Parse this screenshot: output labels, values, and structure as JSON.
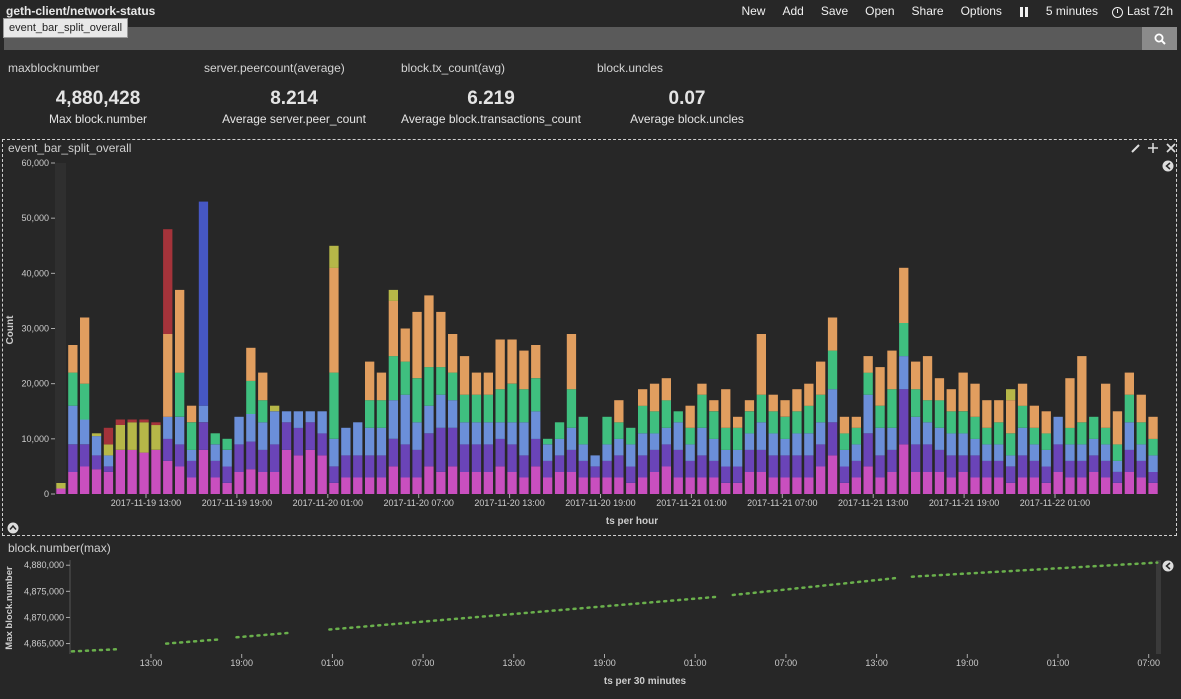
{
  "header": {
    "title": "geth-client/network-status",
    "menu": [
      "New",
      "Add",
      "Save",
      "Open",
      "Share",
      "Options"
    ],
    "refresh": "5 minutes",
    "timerange": "Last 72h"
  },
  "search": {
    "tooltip": "event_bar_split_overall"
  },
  "metrics": [
    {
      "name": "maxblocknumber",
      "value": "4,880,428",
      "desc": "Max block.number"
    },
    {
      "name": "server.peercount(average)",
      "value": "8.214",
      "desc": "Average server.peer_count"
    },
    {
      "name": "block.tx_count(avg)",
      "value": "6.219",
      "desc": "Average block.transactions_count"
    },
    {
      "name": "block.uncles",
      "value": "0.07",
      "desc": "Average block.uncles"
    }
  ],
  "colors": {
    "pink": "#c94fbf",
    "purple": "#6a44b8",
    "blue": "#6b8fd9",
    "green": "#3fbf7f",
    "orange": "#e19e5f",
    "olive": "#b6b748",
    "red": "#a4333a",
    "navy": "#4657c4",
    "line": "#6ab04c"
  },
  "chart_data": [
    {
      "title": "event_bar_split_overall",
      "type": "bar",
      "stacked": true,
      "xlabel": "ts per hour",
      "ylabel": "Count",
      "ylim": [
        0,
        60000
      ],
      "yticks": [
        "0",
        "10,000",
        "20,000",
        "30,000",
        "40,000",
        "50,000",
        "60,000"
      ],
      "xticks": [
        "2017-11-19 13:00",
        "2017-11-19 19:00",
        "2017-11-20 01:00",
        "2017-11-20 07:00",
        "2017-11-20 13:00",
        "2017-11-20 19:00",
        "2017-11-21 01:00",
        "2017-11-21 07:00",
        "2017-11-21 13:00",
        "2017-11-21 19:00",
        "2017-11-22 01:00"
      ],
      "layers": [
        "pink",
        "purple",
        "blue",
        "green",
        "orange",
        "olive",
        "red",
        "navy"
      ],
      "bars": [
        [
          1000,
          0,
          0,
          0,
          0,
          1000,
          0,
          0
        ],
        [
          4000,
          5000,
          7000,
          6000,
          5000,
          0,
          0,
          0
        ],
        [
          5000,
          4000,
          4500,
          6500,
          12000,
          0,
          0,
          0
        ],
        [
          4500,
          2500,
          3500,
          0,
          0,
          500,
          0,
          0
        ],
        [
          4000,
          1000,
          2000,
          0,
          0,
          2000,
          3000,
          0
        ],
        [
          8000,
          0,
          0,
          0,
          0,
          4500,
          1000,
          0
        ],
        [
          8000,
          0,
          0,
          0,
          0,
          5000,
          500,
          0
        ],
        [
          7500,
          0,
          0,
          0,
          0,
          5500,
          500,
          0
        ],
        [
          8000,
          0,
          0,
          0,
          0,
          4500,
          500,
          0
        ],
        [
          6000,
          4000,
          4000,
          0,
          15000,
          0,
          19000,
          0
        ],
        [
          5000,
          4000,
          5000,
          8000,
          15000,
          0,
          0,
          0
        ],
        [
          3000,
          3000,
          2000,
          5000,
          3000,
          0,
          0,
          0
        ],
        [
          8000,
          5000,
          3000,
          0,
          0,
          0,
          0,
          37000
        ],
        [
          3000,
          3000,
          3000,
          2000,
          0,
          0,
          0,
          0
        ],
        [
          2000,
          3000,
          3000,
          2000,
          0,
          0,
          0,
          0
        ],
        [
          4000,
          5000,
          5000,
          0,
          0,
          0,
          0,
          0
        ],
        [
          4500,
          5000,
          5000,
          6000,
          6000,
          0,
          0,
          0
        ],
        [
          4000,
          4000,
          5000,
          4000,
          5000,
          0,
          0,
          0
        ],
        [
          4000,
          5000,
          6000,
          0,
          0,
          1000,
          0,
          0
        ],
        [
          8000,
          5000,
          2000,
          0,
          0,
          0,
          0,
          0
        ],
        [
          7000,
          5000,
          3000,
          0,
          0,
          0,
          0,
          0
        ],
        [
          8000,
          5000,
          2000,
          0,
          0,
          0,
          0,
          0
        ],
        [
          7000,
          4000,
          4000,
          0,
          0,
          0,
          0,
          0
        ],
        [
          2000,
          3000,
          5000,
          12000,
          19000,
          4000,
          0,
          0
        ],
        [
          3000,
          4000,
          5000,
          0,
          0,
          0,
          0,
          0
        ],
        [
          3000,
          4000,
          6000,
          0,
          0,
          0,
          0,
          0
        ],
        [
          3000,
          4000,
          5000,
          5000,
          7000,
          0,
          0,
          0
        ],
        [
          3000,
          4000,
          5000,
          5000,
          5000,
          0,
          0,
          0
        ],
        [
          5000,
          5000,
          7000,
          8000,
          10000,
          2000,
          0,
          0
        ],
        [
          3000,
          6000,
          9000,
          6000,
          6000,
          0,
          0,
          0
        ],
        [
          3000,
          5000,
          5000,
          8000,
          12000,
          0,
          0,
          0
        ],
        [
          5000,
          6000,
          5000,
          7000,
          13000,
          0,
          0,
          0
        ],
        [
          4000,
          8000,
          6000,
          5000,
          10000,
          0,
          0,
          0
        ],
        [
          5000,
          7000,
          5000,
          5000,
          7000,
          0,
          0,
          0
        ],
        [
          4000,
          5000,
          4000,
          5000,
          7000,
          0,
          0,
          0
        ],
        [
          4000,
          5000,
          4000,
          5000,
          4000,
          0,
          0,
          0
        ],
        [
          4000,
          5000,
          4000,
          5000,
          4000,
          0,
          0,
          0
        ],
        [
          5000,
          5000,
          3000,
          6000,
          9000,
          0,
          0,
          0
        ],
        [
          4000,
          5000,
          4000,
          7000,
          8000,
          0,
          0,
          0
        ],
        [
          3000,
          4000,
          6000,
          6000,
          7000,
          0,
          0,
          0
        ],
        [
          5000,
          5000,
          5000,
          6000,
          6000,
          0,
          0,
          0
        ],
        [
          3000,
          3000,
          3000,
          1000,
          0,
          0,
          0,
          0
        ],
        [
          4000,
          3000,
          3000,
          3000,
          0,
          0,
          0,
          0
        ],
        [
          4000,
          4000,
          4000,
          7000,
          10000,
          0,
          0,
          0
        ],
        [
          3000,
          3000,
          3000,
          5000,
          0,
          0,
          0,
          0
        ],
        [
          3000,
          2000,
          2000,
          0,
          0,
          0,
          0,
          0
        ],
        [
          3000,
          3000,
          3000,
          5000,
          0,
          0,
          0,
          0
        ],
        [
          3000,
          4000,
          3000,
          3000,
          4000,
          0,
          0,
          0
        ],
        [
          2000,
          3000,
          4000,
          3000,
          0,
          0,
          0,
          0
        ],
        [
          3000,
          4000,
          4000,
          5000,
          3000,
          0,
          0,
          0
        ],
        [
          4000,
          4000,
          3000,
          4000,
          5000,
          0,
          0,
          0
        ],
        [
          5000,
          4000,
          3000,
          5000,
          4000,
          0,
          0,
          0
        ],
        [
          3000,
          5000,
          5000,
          2000,
          0,
          0,
          0,
          0
        ],
        [
          3000,
          3000,
          3000,
          3000,
          4000,
          0,
          0,
          0
        ],
        [
          3000,
          4000,
          5000,
          6000,
          2000,
          0,
          0,
          0
        ],
        [
          3000,
          3000,
          4000,
          5000,
          2000,
          0,
          0,
          0
        ],
        [
          2000,
          3000,
          3000,
          4000,
          7000,
          0,
          0,
          0
        ],
        [
          2000,
          3000,
          3000,
          4000,
          2000,
          0,
          0,
          0
        ],
        [
          4000,
          4000,
          3000,
          4000,
          2000,
          0,
          0,
          0
        ],
        [
          4000,
          4000,
          5000,
          5000,
          11000,
          0,
          0,
          0
        ],
        [
          3000,
          4000,
          4000,
          4000,
          3000,
          0,
          0,
          0
        ],
        [
          3000,
          4000,
          3000,
          4000,
          3000,
          0,
          0,
          0
        ],
        [
          3000,
          4000,
          4000,
          4000,
          4000,
          0,
          0,
          0
        ],
        [
          3000,
          4000,
          4000,
          5000,
          4000,
          0,
          0,
          0
        ],
        [
          5000,
          4000,
          4000,
          5000,
          6000,
          0,
          0,
          0
        ],
        [
          7000,
          6000,
          6000,
          7000,
          6000,
          0,
          0,
          0
        ],
        [
          2000,
          3000,
          3000,
          3000,
          3000,
          0,
          0,
          0
        ],
        [
          3000,
          3000,
          3000,
          3000,
          2000,
          0,
          0,
          0
        ],
        [
          5000,
          6000,
          7000,
          4000,
          3000,
          0,
          0,
          0
        ],
        [
          3000,
          4000,
          5000,
          4000,
          7000,
          0,
          0,
          0
        ],
        [
          4000,
          4000,
          4000,
          7000,
          7000,
          0,
          0,
          0
        ],
        [
          9000,
          10000,
          6000,
          6000,
          10000,
          0,
          0,
          0
        ],
        [
          4000,
          5000,
          5000,
          5000,
          5000,
          0,
          0,
          0
        ],
        [
          4000,
          5000,
          4000,
          4000,
          8000,
          0,
          0,
          0
        ],
        [
          4000,
          4000,
          4000,
          5000,
          4000,
          0,
          0,
          0
        ],
        [
          3000,
          4000,
          4000,
          4000,
          4000,
          0,
          0,
          0
        ],
        [
          4000,
          3000,
          4000,
          4000,
          7000,
          0,
          0,
          0
        ],
        [
          3000,
          4000,
          3000,
          4000,
          6000,
          0,
          0,
          0
        ],
        [
          3000,
          3000,
          3000,
          3000,
          5000,
          0,
          0,
          0
        ],
        [
          3000,
          3000,
          3000,
          4000,
          4000,
          0,
          0,
          0
        ],
        [
          2000,
          3000,
          2000,
          4000,
          6000,
          2000,
          0,
          0
        ],
        [
          3000,
          4000,
          5000,
          4000,
          4000,
          0,
          0,
          0
        ],
        [
          3000,
          3000,
          3000,
          3000,
          4000,
          0,
          0,
          0
        ],
        [
          2000,
          3000,
          3000,
          3000,
          4000,
          0,
          0,
          0
        ],
        [
          4000,
          5000,
          5000,
          0,
          0,
          0,
          0,
          0
        ],
        [
          3000,
          3000,
          3000,
          3000,
          9000,
          0,
          0,
          0
        ],
        [
          3000,
          3000,
          3000,
          4000,
          12000,
          0,
          0,
          0
        ],
        [
          4000,
          3000,
          3000,
          4000,
          0,
          0,
          0,
          0
        ],
        [
          3000,
          3000,
          3000,
          3000,
          8000,
          0,
          0,
          0
        ],
        [
          2000,
          2000,
          2000,
          3000,
          6000,
          0,
          0,
          0
        ],
        [
          4000,
          4000,
          5000,
          5000,
          4000,
          0,
          0,
          0
        ],
        [
          3000,
          3000,
          3000,
          4000,
          5000,
          0,
          0,
          0
        ],
        [
          2000,
          2000,
          3000,
          3000,
          4000,
          0,
          0,
          0
        ]
      ]
    },
    {
      "title": "block.number(max)",
      "type": "line",
      "xlabel": "ts per 30 minutes",
      "ylabel": "Max block.number",
      "ylim": [
        4863000,
        4881000
      ],
      "yticks": [
        "4,865,000",
        "4,870,000",
        "4,875,000",
        "4,880,000"
      ],
      "xticks": [
        "13:00",
        "19:00",
        "01:00",
        "07:00",
        "13:00",
        "19:00",
        "01:00",
        "07:00",
        "13:00",
        "19:00",
        "01:00",
        "07:00"
      ],
      "segments": [
        {
          "from": [
            0,
            4863500
          ],
          "to": [
            3.3,
            4863900
          ]
        },
        {
          "from": [
            7.1,
            4865000
          ],
          "to": [
            11.1,
            4865800
          ]
        },
        {
          "from": [
            12.4,
            4866200
          ],
          "to": [
            16.6,
            4867100
          ]
        },
        {
          "from": [
            19.4,
            4867700
          ],
          "to": [
            48.8,
            4874000
          ]
        },
        {
          "from": [
            49.8,
            4874300
          ],
          "to": [
            62.3,
            4877600
          ]
        },
        {
          "from": [
            63.3,
            4877800
          ],
          "to": [
            81.8,
            4880500
          ]
        }
      ]
    }
  ]
}
